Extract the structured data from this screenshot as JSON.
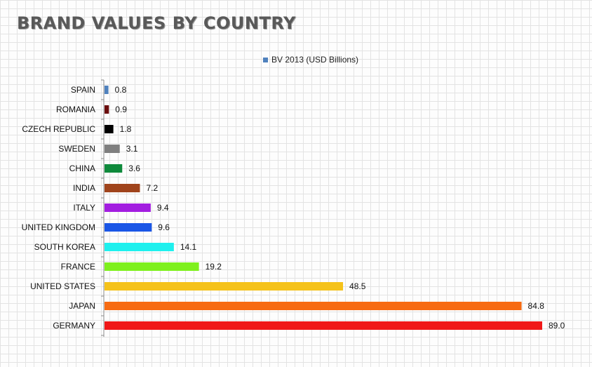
{
  "chart_data": {
    "type": "bar",
    "orientation": "horizontal",
    "title": "BRAND VALUES BY COUNTRY",
    "categories": [
      "SPAIN",
      "ROMANIA",
      "CZECH REPUBLIC",
      "SWEDEN",
      "CHINA",
      "INDIA",
      "ITALY",
      "UNITED KINGDOM",
      "SOUTH KOREA",
      "FRANCE",
      "UNITED STATES",
      "JAPAN",
      "GERMANY"
    ],
    "series": [
      {
        "name": "BV 2013 (USD Billions)",
        "values": [
          0.8,
          0.9,
          1.8,
          3.1,
          3.6,
          7.2,
          9.4,
          9.6,
          14.1,
          19.2,
          48.5,
          84.8,
          89.0
        ],
        "data_labels": [
          "0.8",
          "0.9",
          "1.8",
          "3.1",
          "3.6",
          "7.2",
          "9.4",
          "9.6",
          "14.1",
          "19.2",
          "48.5",
          "84.8",
          "89.0"
        ]
      }
    ],
    "bar_colors": [
      "#4f81bd",
      "#6b0d0d",
      "#000000",
      "#7f7f7f",
      "#0f8a3c",
      "#a0441c",
      "#a31ee0",
      "#1a56e6",
      "#1ff0ee",
      "#7ef01e",
      "#f5c21a",
      "#f76b12",
      "#f01818"
    ],
    "legend_color": "#4f81bd",
    "xlim": [
      0,
      89
    ],
    "legend": "top",
    "grid": false
  }
}
